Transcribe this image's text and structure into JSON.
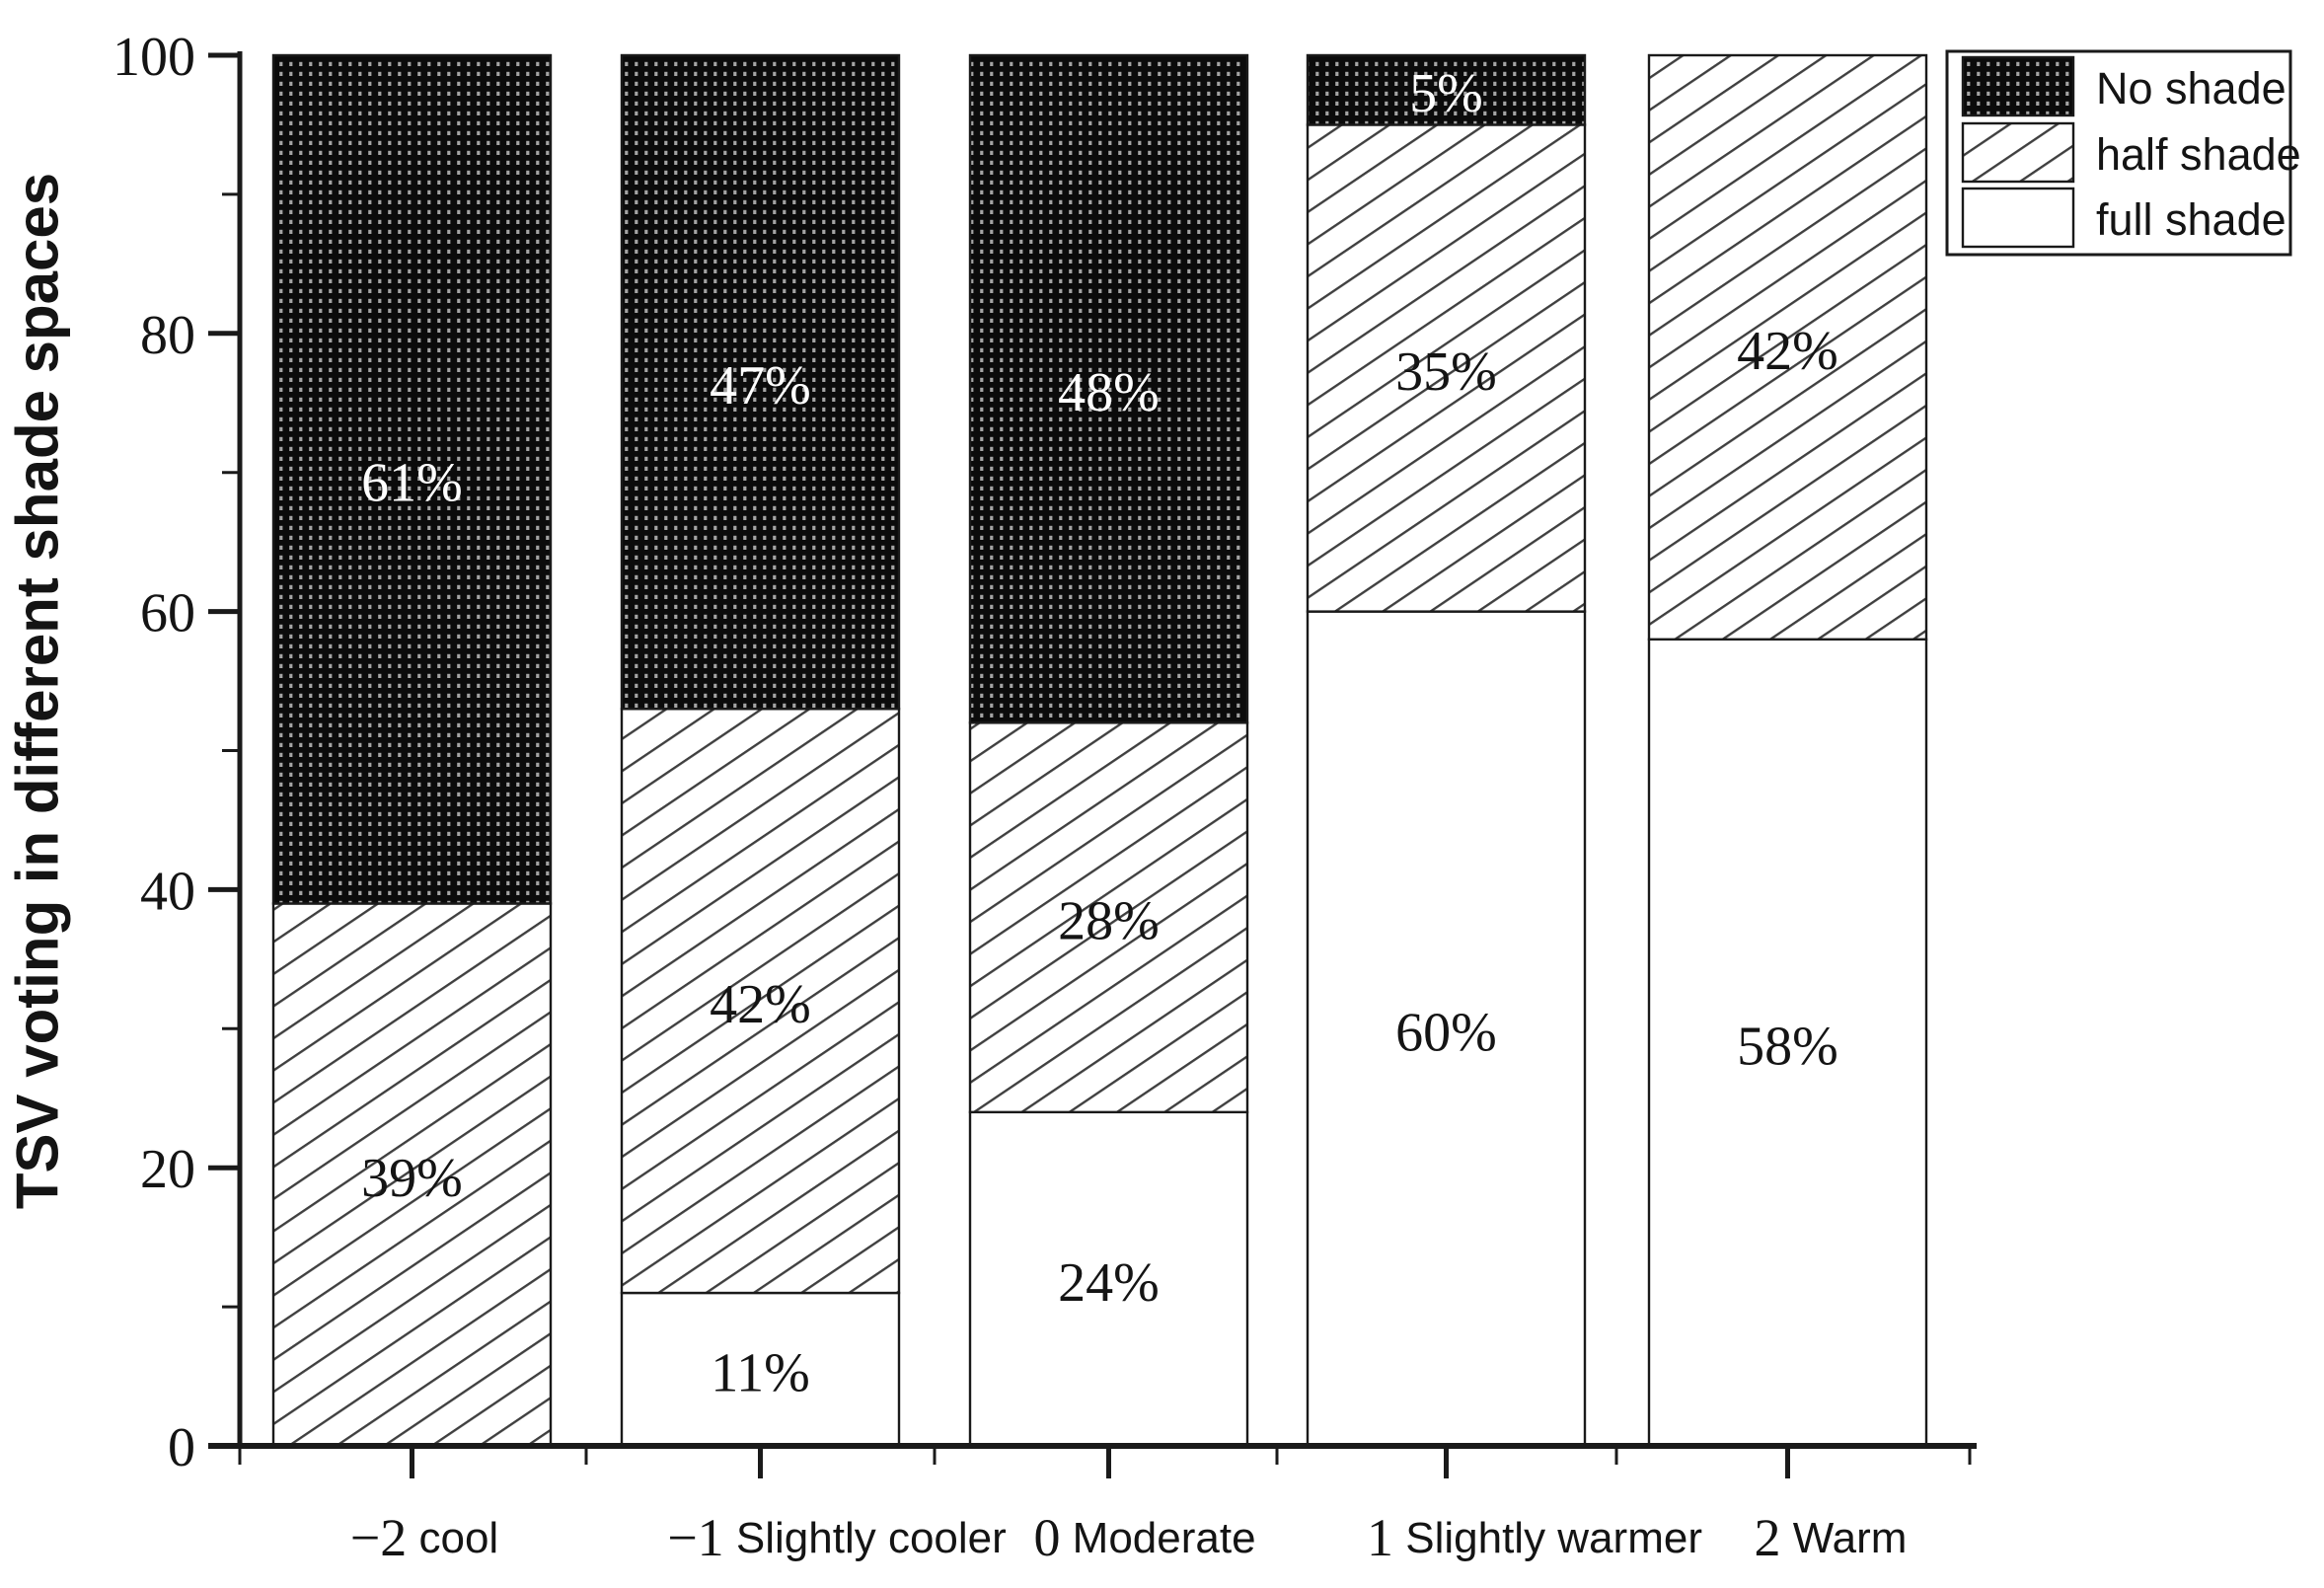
{
  "chart_data": {
    "type": "bar",
    "stacked": true,
    "orientation": "vertical",
    "title": "",
    "ylabel": "TSV voting in different shade spaces",
    "xlabel": "",
    "ylim": [
      0,
      100
    ],
    "yticks_major": [
      0,
      20,
      40,
      60,
      80,
      100
    ],
    "yticks_minor": [
      10,
      30,
      50,
      70,
      90
    ],
    "grid": false,
    "categories": [
      {
        "value": "−2",
        "label": "cool"
      },
      {
        "value": "−1",
        "label": "Slightly cooler"
      },
      {
        "value": "0",
        "label": "Moderate"
      },
      {
        "value": "1",
        "label": "Slightly warmer"
      },
      {
        "value": "2",
        "label": "Warm"
      }
    ],
    "series": [
      {
        "name": "full shade",
        "pattern": "solid-white",
        "values": [
          0,
          11,
          24,
          60,
          58
        ]
      },
      {
        "name": "half shade",
        "pattern": "diagonal-hatch",
        "values": [
          39,
          42,
          28,
          35,
          42
        ]
      },
      {
        "name": "No shade",
        "pattern": "black-dots",
        "values": [
          61,
          47,
          48,
          5,
          0
        ]
      }
    ],
    "bar_label_format": "{value}%",
    "bar_labels": {
      "full shade": [
        "",
        "11%",
        "24%",
        "60%",
        "58%"
      ],
      "half shade": [
        "39%",
        "42%",
        "28%",
        "35%",
        "42%"
      ],
      "No shade": [
        "61%",
        "47%",
        "48%",
        "5%",
        ""
      ]
    },
    "legend": {
      "position": "top-right",
      "entries": [
        {
          "name": "No shade",
          "pattern": "black-dots"
        },
        {
          "name": "half shade",
          "pattern": "diagonal-hatch"
        },
        {
          "name": "full shade",
          "pattern": "solid-white"
        }
      ]
    }
  },
  "colors": {
    "background": "#ffffff",
    "ink": "#1a1a1a",
    "bar_black": "#0b0b0b",
    "dot": "#a4a4a4",
    "hatch_line": "#3f3f3f",
    "label_on_black": "#ffffff",
    "label_on_light": "#141414"
  }
}
